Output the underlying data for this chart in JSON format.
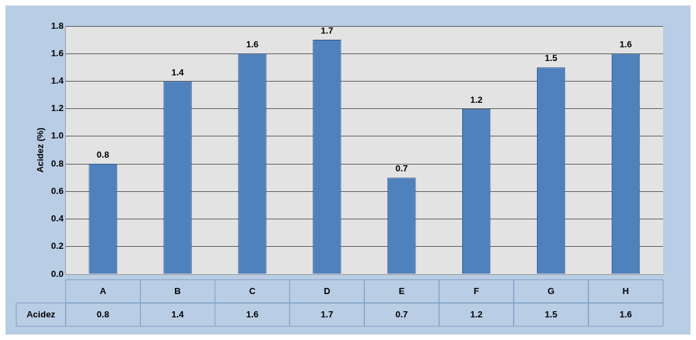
{
  "chart_data": {
    "type": "bar",
    "ylabel": "Acidez (%)",
    "categories": [
      "A",
      "B",
      "C",
      "D",
      "E",
      "F",
      "G",
      "H"
    ],
    "series": [
      {
        "name": "Acidez",
        "color": "#4f81bd",
        "values": [
          0.8,
          1.4,
          1.6,
          1.7,
          0.7,
          1.2,
          1.5,
          1.6
        ]
      }
    ],
    "ylim": [
      0,
      1.8
    ],
    "yticks": [
      {
        "value": 0,
        "label": "0.0"
      },
      0.2,
      0.4,
      0.6,
      0.8,
      {
        "value": 1,
        "label": "1.0"
      },
      1.2,
      1.4,
      1.6,
      1.8
    ],
    "grid": "y",
    "legend": false,
    "data_labels": true,
    "annotations": [
      "0.8",
      "1.4",
      "1.6",
      "1.7",
      "0.7",
      "1.2",
      "1.5",
      "1.6"
    ]
  }
}
